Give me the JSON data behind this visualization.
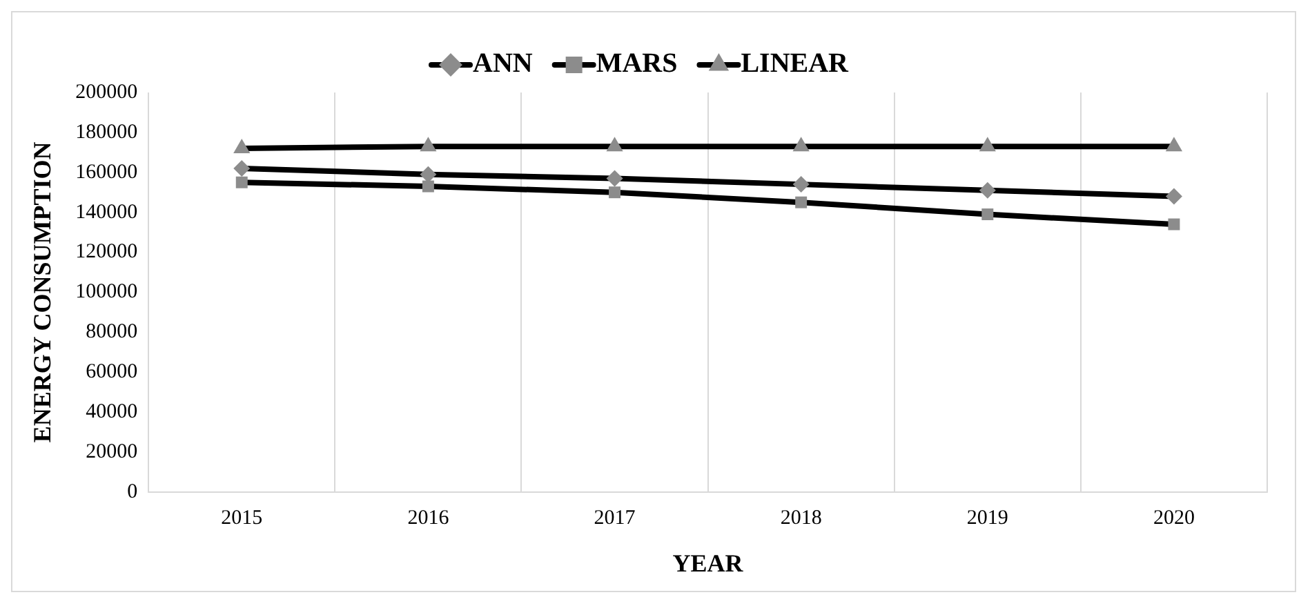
{
  "chart_data": {
    "type": "line",
    "xlabel": "YEAR",
    "ylabel": "ENERGY CONSUMPTION",
    "categories": [
      "2015",
      "2016",
      "2017",
      "2018",
      "2019",
      "2020"
    ],
    "series": [
      {
        "name": "ANN",
        "color": "#000000",
        "marker": "diamond",
        "values": [
          162000,
          159000,
          157000,
          154000,
          151000,
          148000
        ]
      },
      {
        "name": "MARS",
        "color": "#000000",
        "marker": "square",
        "values": [
          155000,
          153000,
          150000,
          145000,
          139000,
          134000
        ]
      },
      {
        "name": "LINEAR",
        "color": "#000000",
        "marker": "triangle",
        "values": [
          172000,
          173000,
          173000,
          173000,
          173000,
          173000
        ]
      }
    ],
    "ylim": [
      0,
      200000
    ],
    "yticks": [
      0,
      20000,
      40000,
      60000,
      80000,
      100000,
      120000,
      140000,
      160000,
      180000,
      200000
    ],
    "grid": "x",
    "legend": "top"
  }
}
